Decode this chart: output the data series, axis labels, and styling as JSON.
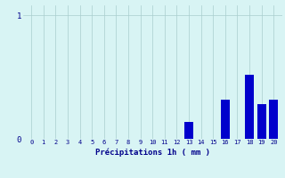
{
  "hours": [
    0,
    1,
    2,
    3,
    4,
    5,
    6,
    7,
    8,
    9,
    10,
    11,
    12,
    13,
    14,
    15,
    16,
    17,
    18,
    19,
    20
  ],
  "values": [
    0,
    0,
    0,
    0,
    0,
    0,
    0,
    0,
    0,
    0,
    0,
    0,
    0,
    0.14,
    0,
    0,
    0.32,
    0,
    0.52,
    0.28,
    0.32
  ],
  "bar_color": "#0000cc",
  "bg_color": "#d8f4f4",
  "grid_color": "#aacece",
  "xlabel": "Précipitations 1h ( mm )",
  "xlabel_color": "#00008b",
  "tick_color": "#00008b",
  "ylim": [
    0,
    1.08
  ],
  "xlim": [
    -0.7,
    20.7
  ]
}
